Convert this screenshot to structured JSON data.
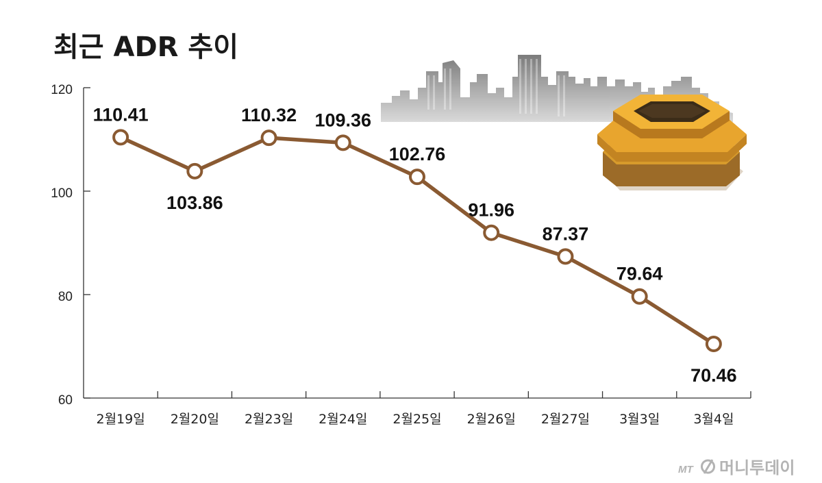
{
  "title": "최근 ADR 추이",
  "colors": {
    "line": "#8a5a32",
    "marker_fill": "#ffffff",
    "axis": "#333333",
    "logo": "#b3b3b3"
  },
  "decor": {
    "skyline": "city-skyline-illustration",
    "coin": "brass-hexagonal-coin-illustration"
  },
  "logo": {
    "mark": "MT",
    "name": "머니투데이"
  },
  "chart_data": {
    "type": "line",
    "categories": [
      "2월19일",
      "2월20일",
      "2월23일",
      "2월24일",
      "2월25일",
      "2월26일",
      "2월27일",
      "3월3일",
      "3월4일"
    ],
    "values": [
      110.41,
      103.86,
      110.32,
      109.36,
      102.76,
      91.96,
      87.37,
      79.64,
      70.46
    ],
    "data_labels": [
      "110.41",
      "103.86",
      "110.32",
      "109.36",
      "102.76",
      "91.96",
      "87.37",
      "79.64",
      "70.46"
    ],
    "label_position": [
      "above",
      "below",
      "above",
      "above",
      "above",
      "above",
      "above",
      "above",
      "below"
    ],
    "ylim": [
      60,
      120
    ],
    "yticks": [
      60,
      80,
      100,
      120
    ],
    "ytick_labels": [
      "60",
      "80",
      "100",
      "120"
    ],
    "grid": false,
    "legend": "none"
  }
}
